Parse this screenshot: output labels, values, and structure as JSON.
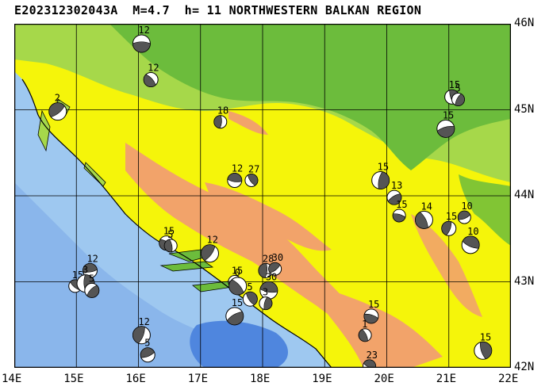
{
  "header": {
    "title": "E202312302043A  M=4.7  h= 11 NORTHWESTERN BALKAN REGION"
  },
  "axes": {
    "lon_labels": [
      "14E",
      "15E",
      "16E",
      "17E",
      "18E",
      "19E",
      "20E",
      "21E",
      "22E"
    ],
    "lat_labels": [
      "46N",
      "45N",
      "44N",
      "43N",
      "42N"
    ],
    "lon_range": [
      14,
      22
    ],
    "lat_range": [
      42,
      46
    ]
  },
  "colors": {
    "sea_light": "#9ec8f0",
    "sea_mid": "#7aa8e8",
    "sea_deep": "#4f86de",
    "plain_green": "#6cbc3c",
    "lowland_lightgreen": "#a6d84a",
    "hill_yellow": "#f5f50a",
    "mountain_orange": "#f2a36a",
    "grid": "#000000"
  },
  "events": [
    {
      "depth": "12",
      "lon": 16.05,
      "lat": 45.77
    },
    {
      "depth": "12",
      "lon": 16.2,
      "lat": 45.35
    },
    {
      "depth": "18",
      "lon": 17.32,
      "lat": 44.86
    },
    {
      "depth": "2",
      "lon": 14.7,
      "lat": 44.98
    },
    {
      "depth": "12",
      "lon": 17.55,
      "lat": 44.18
    },
    {
      "depth": "27",
      "lon": 17.82,
      "lat": 44.18
    },
    {
      "depth": "15",
      "lon": 19.9,
      "lat": 44.18
    },
    {
      "depth": "13",
      "lon": 20.12,
      "lat": 43.98
    },
    {
      "depth": "15",
      "lon": 20.2,
      "lat": 43.77
    },
    {
      "depth": "14",
      "lon": 20.6,
      "lat": 43.72
    },
    {
      "depth": "15",
      "lon": 21.0,
      "lat": 43.62
    },
    {
      "depth": "10",
      "lon": 21.25,
      "lat": 43.75
    },
    {
      "depth": "10",
      "lon": 21.35,
      "lat": 43.43
    },
    {
      "depth": "15",
      "lon": 21.05,
      "lat": 45.15
    },
    {
      "depth": "5",
      "lon": 21.15,
      "lat": 45.12
    },
    {
      "depth": "15",
      "lon": 20.95,
      "lat": 44.78
    },
    {
      "depth": "15",
      "lon": 16.45,
      "lat": 43.45
    },
    {
      "depth": "5",
      "lon": 16.52,
      "lat": 43.42
    },
    {
      "depth": "12",
      "lon": 17.15,
      "lat": 43.33
    },
    {
      "depth": "12",
      "lon": 15.22,
      "lat": 43.13
    },
    {
      "depth": "15",
      "lon": 14.98,
      "lat": 42.95
    },
    {
      "depth": "3",
      "lon": 15.15,
      "lat": 42.98
    },
    {
      "depth": "5",
      "lon": 15.25,
      "lat": 42.9
    },
    {
      "depth": "15",
      "lon": 17.55,
      "lat": 43.0
    },
    {
      "depth": "0",
      "lon": 17.6,
      "lat": 42.95
    },
    {
      "depth": "28",
      "lon": 18.05,
      "lat": 43.13
    },
    {
      "depth": "30",
      "lon": 18.2,
      "lat": 43.15
    },
    {
      "depth": "30",
      "lon": 18.1,
      "lat": 42.9
    },
    {
      "depth": "5",
      "lon": 17.8,
      "lat": 42.8
    },
    {
      "depth": "3",
      "lon": 18.05,
      "lat": 42.75
    },
    {
      "depth": "15",
      "lon": 17.55,
      "lat": 42.6
    },
    {
      "depth": "15",
      "lon": 19.75,
      "lat": 42.6
    },
    {
      "depth": "1",
      "lon": 19.65,
      "lat": 42.38
    },
    {
      "depth": "12",
      "lon": 16.05,
      "lat": 42.38
    },
    {
      "depth": "5",
      "lon": 16.15,
      "lat": 42.15
    },
    {
      "depth": "23",
      "lon": 19.72,
      "lat": 42.02
    },
    {
      "depth": "15",
      "lon": 21.55,
      "lat": 42.2
    }
  ]
}
